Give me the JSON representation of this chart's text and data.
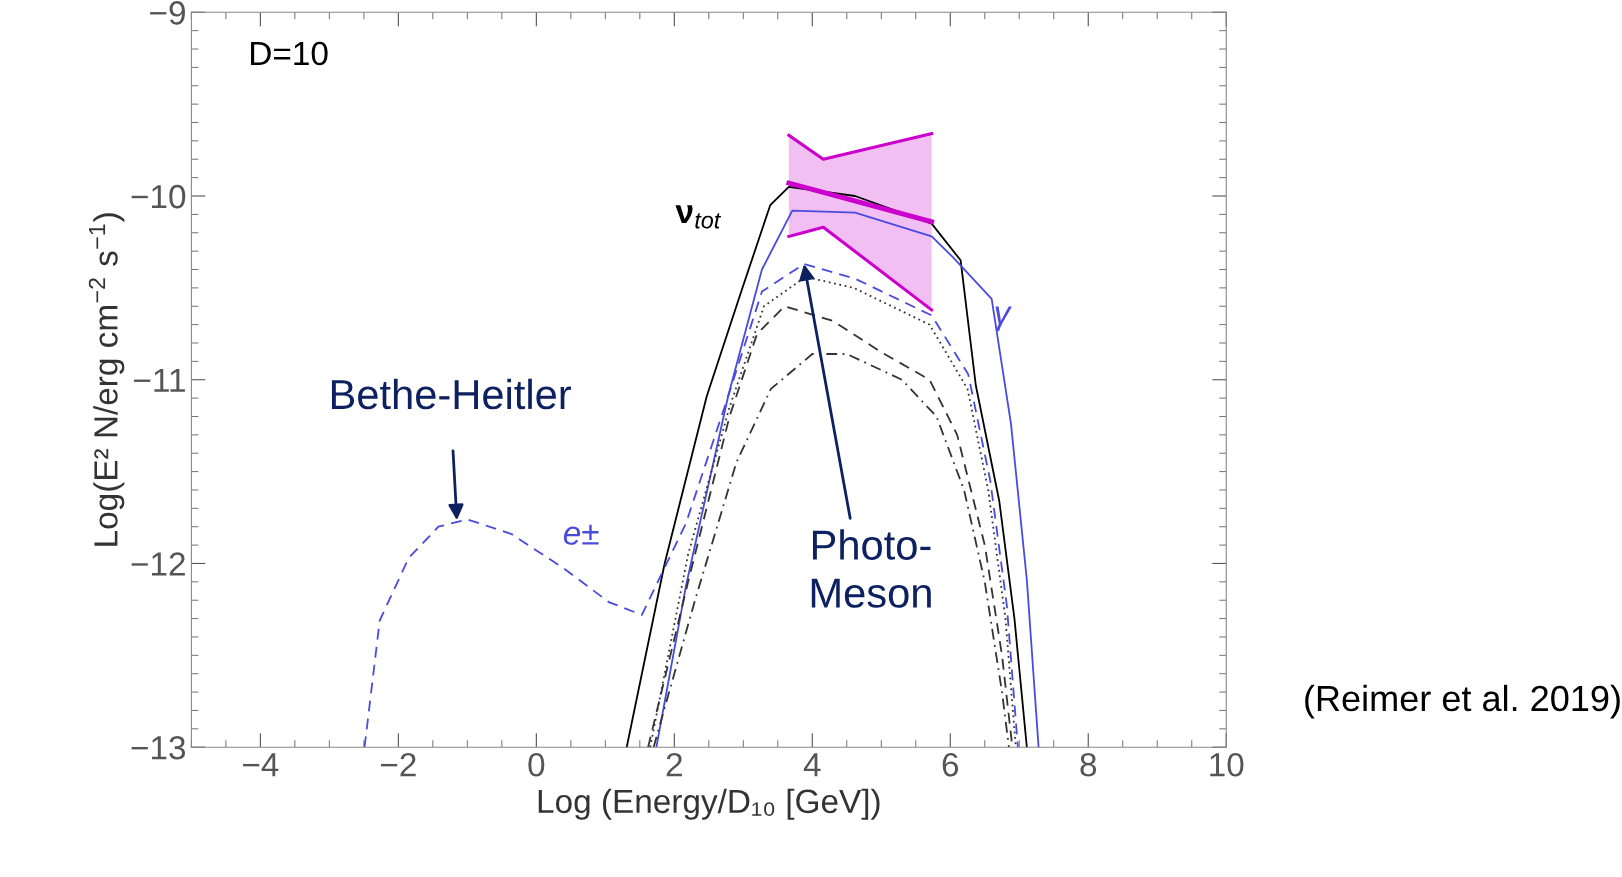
{
  "chart_data": {
    "type": "line",
    "xlabel": "Log (Energy/D₁₀ [GeV])",
    "ylabel": "Log(E² N/erg cm$^{−2}$ s$^{−1}$)",
    "xlim": [
      -5,
      10
    ],
    "ylim": [
      -13,
      -9
    ],
    "xticks": [
      -4,
      -2,
      0,
      2,
      4,
      6,
      8,
      10
    ],
    "yticks": [
      -13,
      -12,
      -11,
      -10,
      -9
    ],
    "grid": false,
    "marker": "none",
    "series": [
      {
        "name": "ν$_{tot}$",
        "color": "#000000",
        "line_style": "solid",
        "x": [
          1.31,
          1.86,
          2.47,
          2.97,
          3.39,
          3.66,
          4.62,
          5.73,
          6.15,
          6.37,
          6.71,
          6.93,
          7.11
        ],
        "values": [
          -13,
          -12.0,
          -11.09,
          -10.52,
          -10.05,
          -9.95,
          -10.0,
          -10.15,
          -10.35,
          -11.03,
          -11.66,
          -12.3,
          -13
        ]
      },
      {
        "name": "γ",
        "color": "#4a4ae0",
        "line_style": "solid",
        "x": [
          1.74,
          2.17,
          2.78,
          3.27,
          3.71,
          4.62,
          5.73,
          6.03,
          6.6,
          6.88,
          7.11,
          7.28
        ],
        "values": [
          -13,
          -12.12,
          -11.09,
          -10.4,
          -10.08,
          -10.09,
          -10.22,
          -10.33,
          -10.56,
          -11.24,
          -12.09,
          -13
        ]
      },
      {
        "name": "e±",
        "color": "#4a4ae0",
        "line_style": "dashed",
        "x": [
          -2.49,
          -2.27,
          -1.85,
          -1.42,
          -1.0,
          -0.36,
          0.41,
          1.05,
          1.53,
          2.17,
          2.78,
          3.27,
          3.88,
          4.62,
          5.73,
          6.26,
          6.58,
          6.82,
          6.98
        ],
        "values": [
          -13,
          -12.31,
          -11.97,
          -11.8,
          -11.76,
          -11.84,
          -12.03,
          -12.21,
          -12.28,
          -11.78,
          -11.09,
          -10.52,
          -10.37,
          -10.45,
          -10.65,
          -10.97,
          -11.55,
          -12.23,
          -13
        ]
      },
      {
        "color": "#333333",
        "line_style": "dotted",
        "x": [
          1.65,
          2.2,
          2.8,
          3.3,
          3.9,
          4.6,
          5.7,
          6.25,
          6.55,
          6.8,
          6.95
        ],
        "values": [
          -13,
          -11.95,
          -11.15,
          -10.6,
          -10.44,
          -10.5,
          -10.7,
          -11.05,
          -11.6,
          -12.3,
          -13
        ]
      },
      {
        "color": "#333333",
        "line_style": "dashed",
        "x": [
          1.62,
          2.2,
          2.8,
          3.2,
          3.6,
          4.3,
          5.0,
          5.7,
          6.1,
          6.5,
          6.75,
          6.9
        ],
        "values": [
          -13,
          -12.1,
          -11.2,
          -10.75,
          -10.6,
          -10.68,
          -10.85,
          -11.0,
          -11.3,
          -11.9,
          -12.5,
          -13
        ]
      },
      {
        "color": "#333333",
        "line_style": "dashdot",
        "x": [
          1.7,
          2.3,
          2.9,
          3.4,
          4.0,
          4.5,
          5.3,
          5.8,
          6.2,
          6.5,
          6.75,
          6.85
        ],
        "values": [
          -13,
          -12.2,
          -11.45,
          -11.05,
          -10.86,
          -10.86,
          -11.0,
          -11.2,
          -11.6,
          -12.1,
          -12.7,
          -13
        ]
      },
      {
        "color": "#cc00cc",
        "line_style": "solid",
        "x": [
          3.66,
          4.16,
          5.73
        ],
        "values": [
          -9.93,
          -9.98,
          -10.14
        ],
        "lower": [
          -10.22,
          -10.17,
          -10.62
        ],
        "upper": [
          -9.67,
          -9.8,
          -9.66
        ]
      },
      {
        "color": "#cc00cc",
        "line_style": "solid",
        "x": [
          3.66,
          4.16,
          5.73
        ],
        "values": [
          -9.67,
          -9.8,
          -9.66
        ]
      },
      {
        "color": "#cc00cc",
        "line_style": "solid",
        "x": [
          3.66,
          4.16,
          5.73
        ],
        "values": [
          -10.22,
          -10.17,
          -10.62
        ]
      }
    ],
    "annotations": [
      "D=10",
      {
        "text": "Bethe-Heitler",
        "x": -1.15,
        "y": -11.78
      },
      {
        "text": "Photo-\nMeson",
        "x": 3.88,
        "y": -10.37
      },
      "(Reimer et al. 2019)"
    ]
  }
}
